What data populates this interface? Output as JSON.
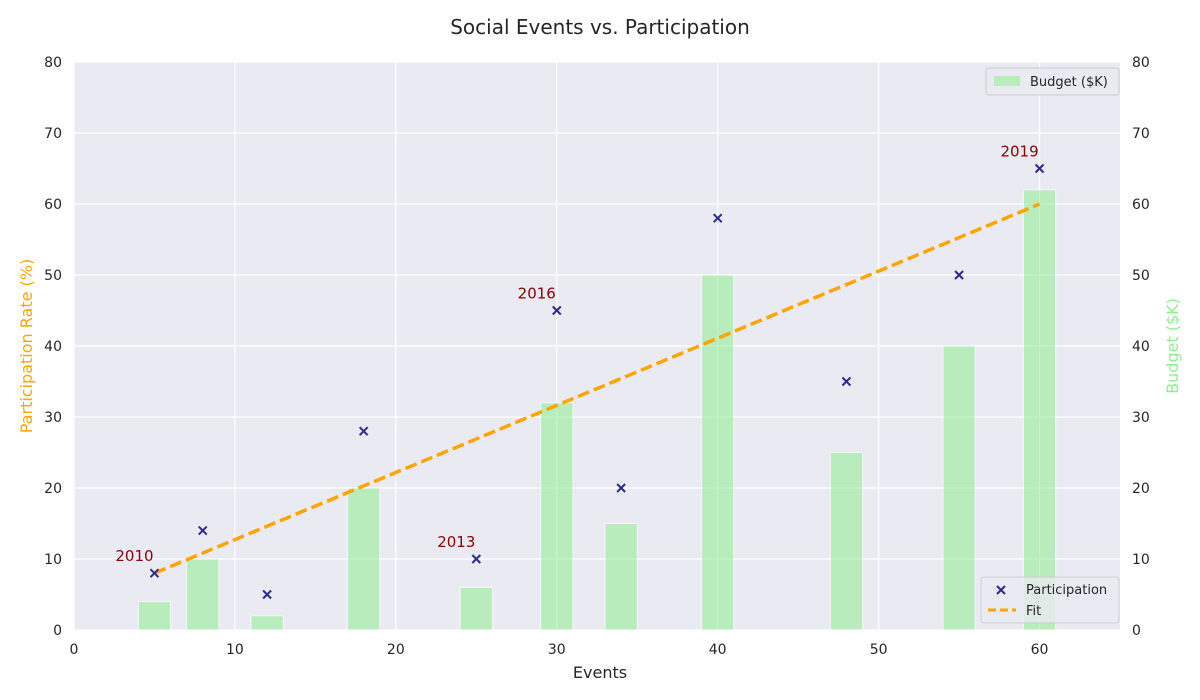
{
  "chart_data": {
    "type": "scatter",
    "title": "Social Events vs. Participation",
    "xlabel": "Events",
    "ylabel": "Participation Rate (%)",
    "y2label": "Budget ($K)",
    "xlim": [
      0,
      65
    ],
    "ylim": [
      0,
      80
    ],
    "y2lim": [
      0,
      80
    ],
    "xticks": [
      0,
      10,
      20,
      30,
      40,
      50,
      60
    ],
    "yticks": [
      0,
      10,
      20,
      30,
      40,
      50,
      60,
      70,
      80
    ],
    "grid": true,
    "series": [
      {
        "name": "Participation",
        "kind": "scatter",
        "marker": "x",
        "color": "#2b2b8f",
        "x": [
          5,
          8,
          12,
          18,
          25,
          30,
          34,
          40,
          48,
          55,
          60
        ],
        "y": [
          8,
          14,
          5,
          28,
          10,
          45,
          20,
          58,
          35,
          50,
          65
        ]
      },
      {
        "name": "Fit",
        "kind": "line",
        "color": "#ffa500",
        "style": "dashed",
        "x": [
          5,
          60
        ],
        "y": [
          8,
          60
        ]
      },
      {
        "name": "Budget ($K)",
        "kind": "bar",
        "axis": "right",
        "color": "#90ee90",
        "x": [
          5,
          8,
          12,
          18,
          25,
          30,
          34,
          40,
          48,
          55,
          60
        ],
        "y": [
          4,
          10,
          2,
          20,
          6,
          32,
          15,
          50,
          25,
          40,
          62
        ]
      }
    ],
    "annotations": [
      {
        "text": "2010",
        "x": 5,
        "y": 8
      },
      {
        "text": "2013",
        "x": 25,
        "y": 10
      },
      {
        "text": "2016",
        "x": 30,
        "y": 45
      },
      {
        "text": "2019",
        "x": 60,
        "y": 65
      }
    ],
    "legends": [
      {
        "placement": "top-right",
        "entries": [
          "Budget ($K)"
        ]
      },
      {
        "placement": "bottom-right",
        "entries": [
          "Participation",
          "Fit"
        ]
      }
    ],
    "colors": {
      "background": "#eaeaf2",
      "ylabel": "#ffa500",
      "y2label": "#90ee90",
      "annotation": "#8b0000"
    }
  }
}
